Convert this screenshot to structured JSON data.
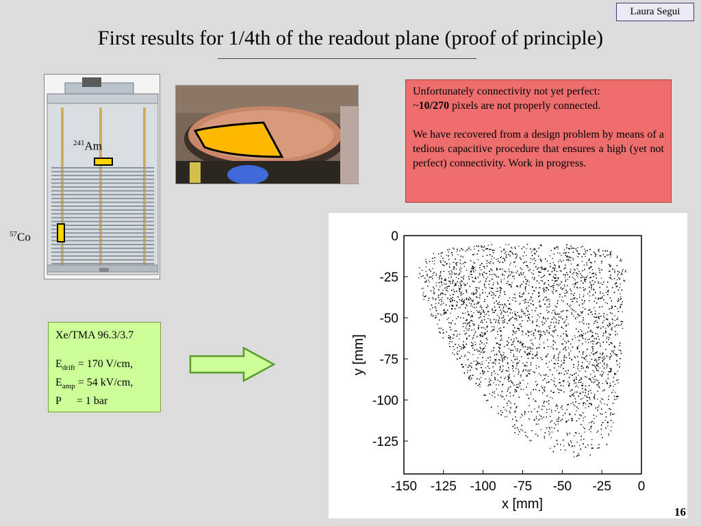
{
  "slide": {
    "author": "Laura Segui",
    "title": "First results for 1/4th of the readout plane (proof of principle)",
    "page_number": "16"
  },
  "detector": {
    "source_am": {
      "mass": "241",
      "symbol": "Am"
    },
    "source_co": {
      "mass": "57",
      "symbol": "Co"
    }
  },
  "notice": {
    "line1": "Unfortunately connectivity not yet perfect:",
    "prefix": "~",
    "pixels_bold": "10/270",
    "line2_rest": " pixels are not properly connected.",
    "paragraph2": "We have recovered from a design problem by means of a tedious capacitive procedure that ensures a high (yet not perfect) connectivity. Work in progress."
  },
  "params": {
    "gas": "Xe/TMA 96.3/3.7",
    "e_drift_label": "E",
    "e_drift_sub": "drift",
    "e_drift_value": " = 170 V/cm,",
    "e_amp_label": "E",
    "e_amp_sub": "amp",
    "e_amp_value": " = 54 kV/cm,",
    "p_label": "P",
    "p_value": "= 1 bar"
  },
  "colors": {
    "background": "#dcdcdc",
    "notice_bg": "#ee6e6e",
    "params_bg": "#ccff99",
    "arrow_fill": "#ccff99",
    "arrow_stroke": "#5a9a2a",
    "highlight_yellow": "#ffd700",
    "photo_overlay": "#ffb800"
  },
  "chart_data": {
    "type": "scatter",
    "title": "",
    "xlabel": "x [mm]",
    "ylabel": "y [mm]",
    "xlim": [
      -150,
      0
    ],
    "ylim": [
      -145,
      0
    ],
    "xticks": [
      -150,
      -125,
      -100,
      -75,
      -50,
      -25,
      0
    ],
    "yticks": [
      0,
      -25,
      -50,
      -75,
      -100,
      -125
    ],
    "region_outline": [
      [
        -140,
        -15
      ],
      [
        -128,
        -8
      ],
      [
        -100,
        -5
      ],
      [
        -75,
        -5
      ],
      [
        -50,
        -5
      ],
      [
        -20,
        -8
      ],
      [
        -10,
        -15
      ],
      [
        -12,
        -60
      ],
      [
        -15,
        -100
      ],
      [
        -22,
        -130
      ],
      [
        -40,
        -136
      ],
      [
        -60,
        -130
      ],
      [
        -80,
        -120
      ],
      [
        -100,
        -100
      ],
      [
        -115,
        -80
      ],
      [
        -130,
        -55
      ],
      [
        -142,
        -30
      ]
    ],
    "dense_clusters": [
      {
        "x": -112,
        "y": -30,
        "density": "high"
      },
      {
        "x": -90,
        "y": -60,
        "density": "high"
      },
      {
        "x": -28,
        "y": -80,
        "density": "high"
      },
      {
        "x": -45,
        "y": -20,
        "density": "high"
      }
    ],
    "grid": false
  }
}
